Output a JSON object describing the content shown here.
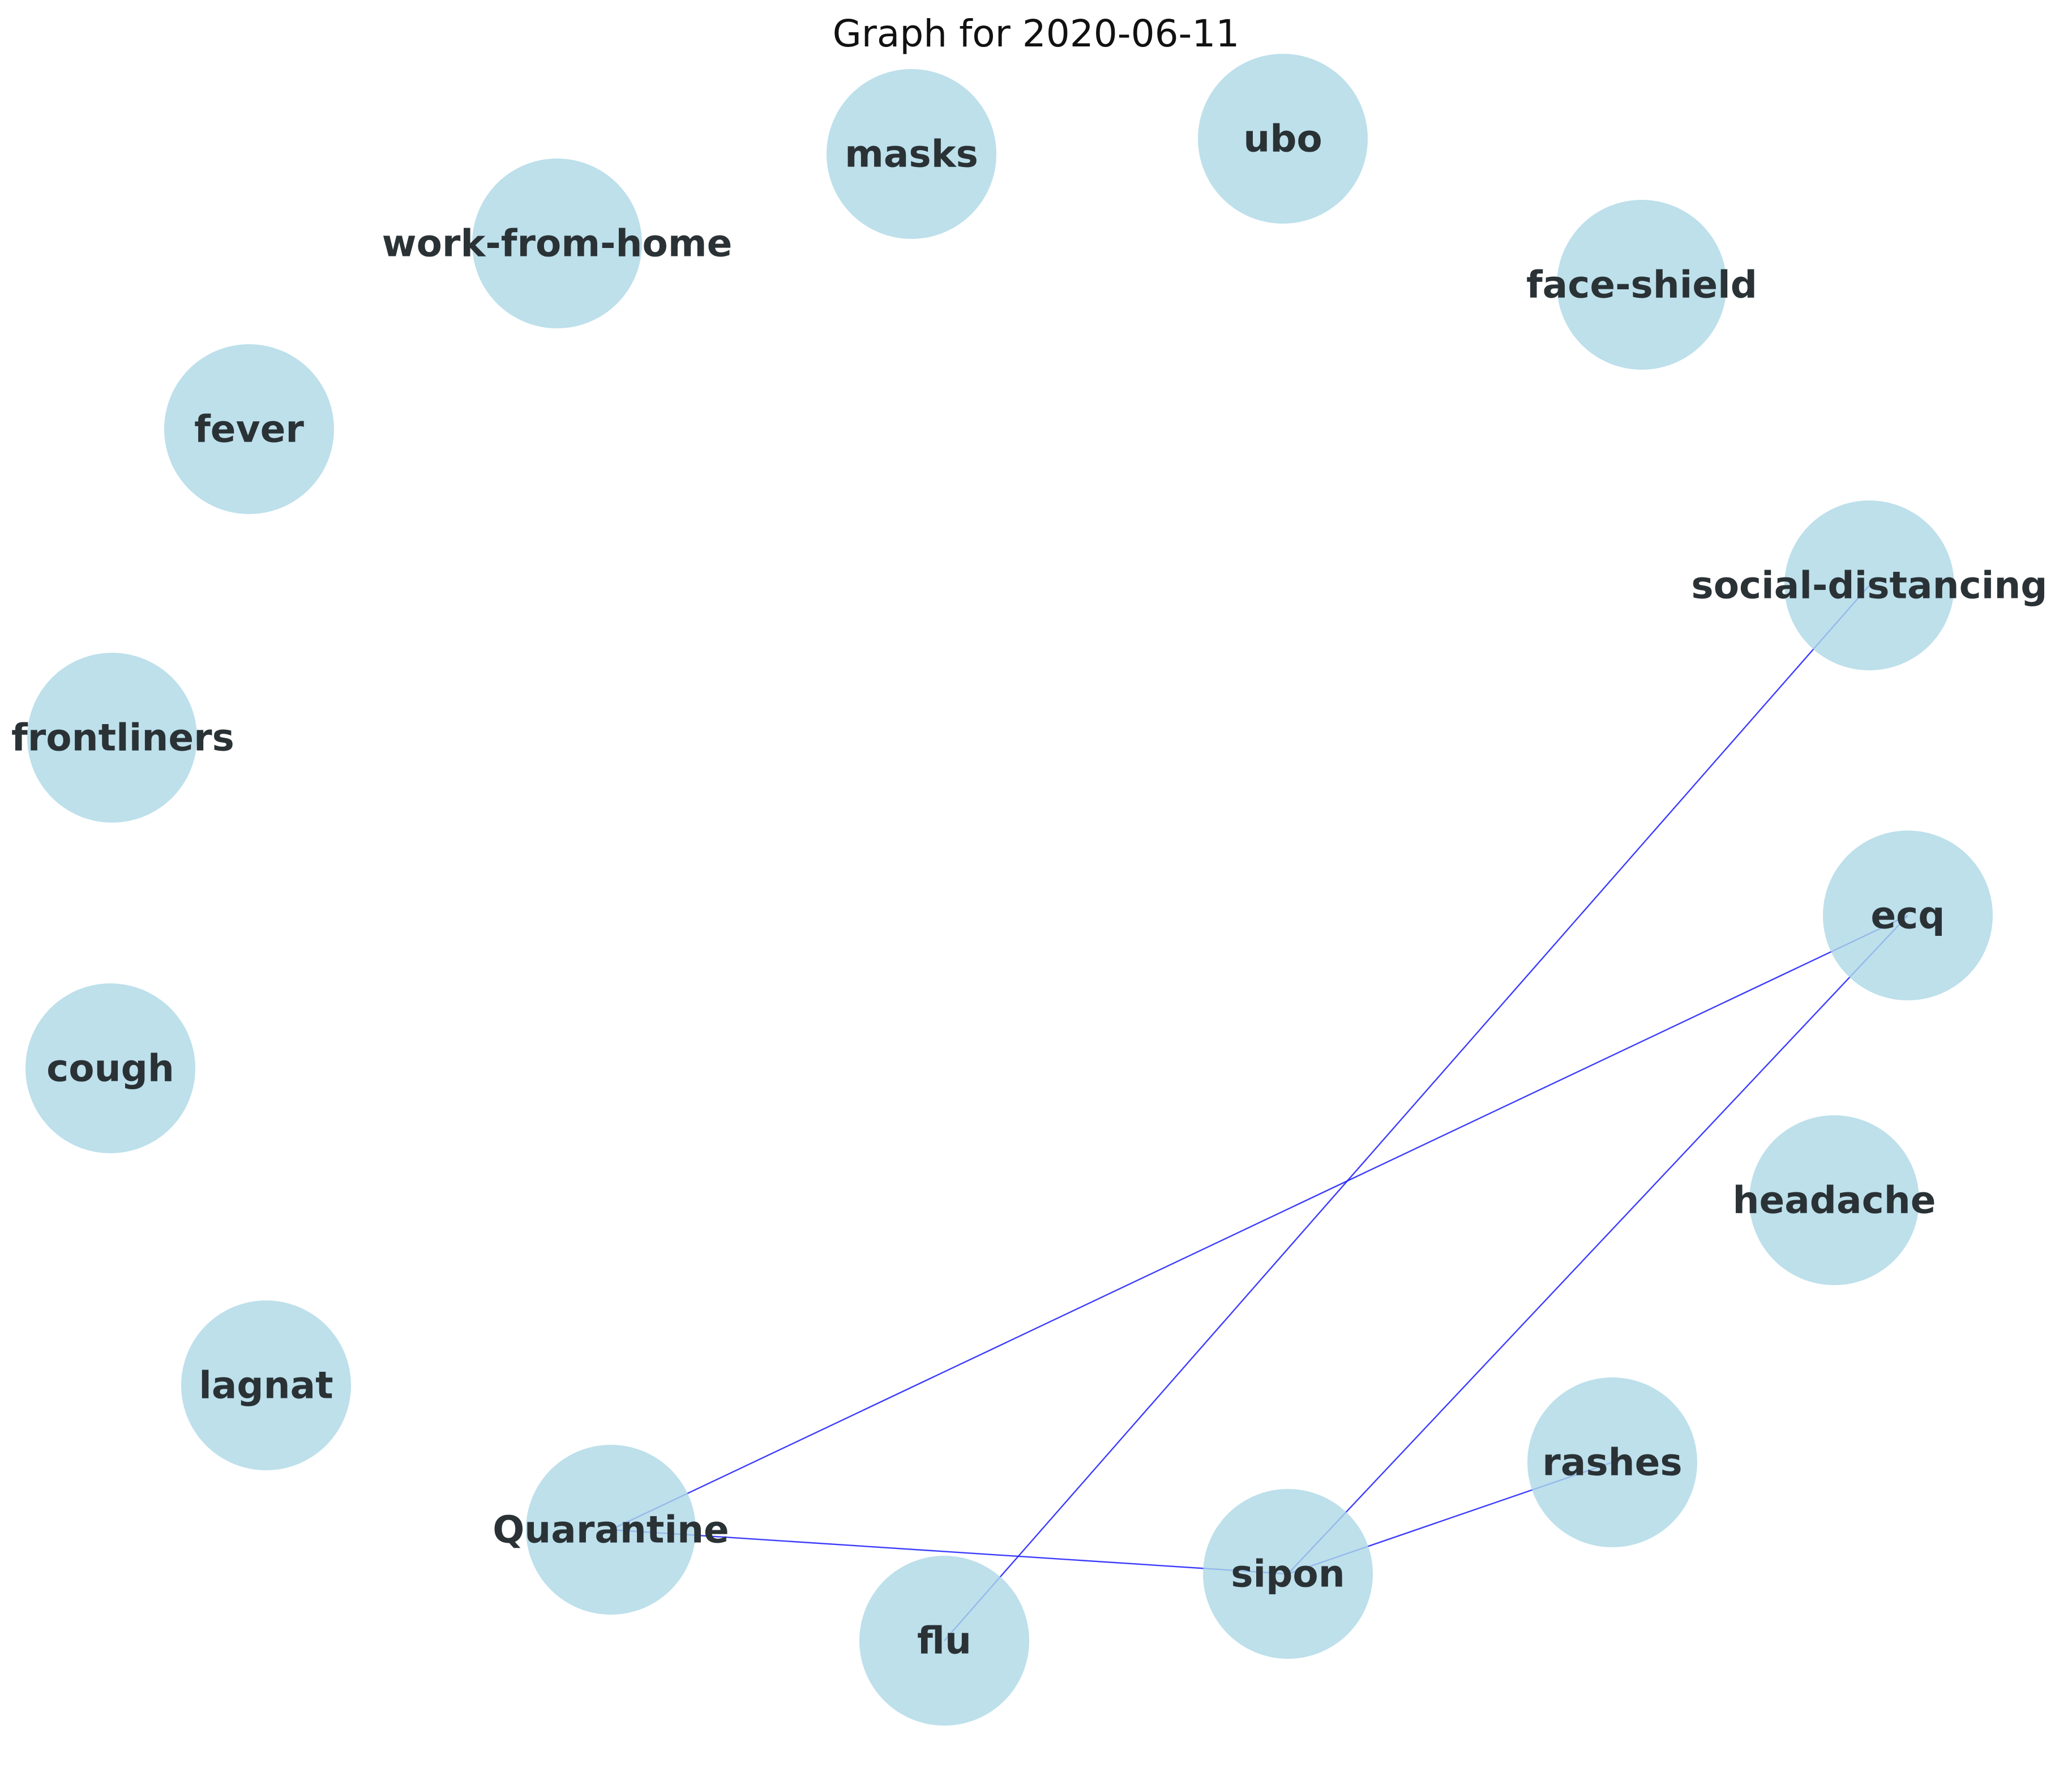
{
  "title": "Graph for 2020-06-11",
  "colors": {
    "node_fill": "#add8e6",
    "edge": "#1a1aff",
    "label": "#2a3236"
  },
  "nodes": [
    {
      "id": "masks",
      "label": "masks"
    },
    {
      "id": "ubo",
      "label": "ubo"
    },
    {
      "id": "work-from-home",
      "label": "work-from-home"
    },
    {
      "id": "face-shield",
      "label": "face-shield"
    },
    {
      "id": "fever",
      "label": "fever"
    },
    {
      "id": "social-distancing",
      "label": "social-distancing"
    },
    {
      "id": "frontliners",
      "label": "frontliners"
    },
    {
      "id": "ecq",
      "label": "ecq"
    },
    {
      "id": "cough",
      "label": "cough"
    },
    {
      "id": "headache",
      "label": "headache"
    },
    {
      "id": "lagnat",
      "label": "lagnat"
    },
    {
      "id": "rashes",
      "label": "rashes"
    },
    {
      "id": "Quarantine",
      "label": "Quarantine"
    },
    {
      "id": "sipon",
      "label": "sipon"
    },
    {
      "id": "flu",
      "label": "flu"
    }
  ],
  "edges": [
    {
      "source": "social-distancing",
      "target": "flu"
    },
    {
      "source": "ecq",
      "target": "Quarantine"
    },
    {
      "source": "ecq",
      "target": "sipon"
    },
    {
      "source": "Quarantine",
      "target": "sipon"
    },
    {
      "source": "sipon",
      "target": "rashes"
    }
  ]
}
